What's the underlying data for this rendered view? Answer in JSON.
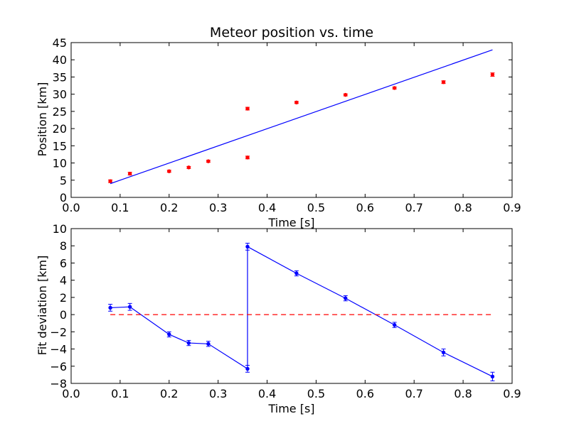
{
  "chart_data": [
    {
      "type": "scatter",
      "title": "Meteor position vs. time",
      "xlabel": "Time [s]",
      "ylabel": "Position [km]",
      "xlim": [
        0.0,
        0.9
      ],
      "ylim": [
        0,
        45
      ],
      "xticks": [
        "0.0",
        "0.1",
        "0.2",
        "0.3",
        "0.4",
        "0.5",
        "0.6",
        "0.7",
        "0.8",
        "0.9"
      ],
      "yticks": [
        "0",
        "5",
        "10",
        "15",
        "20",
        "25",
        "30",
        "35",
        "40",
        "45"
      ],
      "grid": false,
      "series": [
        {
          "style": "points-with-errorbars",
          "color": "#ff0000",
          "x": [
            0.08,
            0.12,
            0.2,
            0.24,
            0.28,
            0.36,
            0.36,
            0.46,
            0.56,
            0.66,
            0.76,
            0.86
          ],
          "y": [
            4.7,
            6.9,
            7.6,
            8.7,
            10.5,
            11.6,
            25.8,
            27.6,
            29.8,
            31.8,
            33.5,
            35.7
          ],
          "yerr": [
            0.4,
            0.4,
            0.3,
            0.3,
            0.3,
            0.4,
            0.4,
            0.3,
            0.3,
            0.3,
            0.4,
            0.5
          ]
        },
        {
          "style": "line",
          "color": "#0000ff",
          "x": [
            0.08,
            0.86
          ],
          "y": [
            4.0,
            42.9
          ]
        }
      ]
    },
    {
      "type": "line",
      "title": "",
      "xlabel": "Time [s]",
      "ylabel": "Fit deviation [km]",
      "xlim": [
        0.0,
        0.9
      ],
      "ylim": [
        -8,
        10
      ],
      "xticks": [
        "0.0",
        "0.1",
        "0.2",
        "0.3",
        "0.4",
        "0.5",
        "0.6",
        "0.7",
        "0.8",
        "0.9"
      ],
      "yticks": [
        "−8",
        "−6",
        "−4",
        "−2",
        "0",
        "2",
        "4",
        "6",
        "8",
        "10"
      ],
      "grid": false,
      "series": [
        {
          "style": "line-with-errorbars",
          "color": "#0000ff",
          "x": [
            0.08,
            0.12,
            0.2,
            0.24,
            0.28,
            0.36,
            0.36,
            0.46,
            0.56,
            0.66,
            0.76,
            0.86
          ],
          "y": [
            0.8,
            0.9,
            -2.3,
            -3.3,
            -3.4,
            -6.3,
            7.9,
            4.8,
            1.9,
            -1.2,
            -4.4,
            -7.2
          ],
          "yerr": [
            0.4,
            0.4,
            0.3,
            0.3,
            0.3,
            0.4,
            0.4,
            0.3,
            0.3,
            0.3,
            0.4,
            0.5
          ]
        },
        {
          "style": "dashed-line",
          "color": "#ff0000",
          "x": [
            0.08,
            0.86
          ],
          "y": [
            0,
            0
          ]
        }
      ]
    }
  ]
}
